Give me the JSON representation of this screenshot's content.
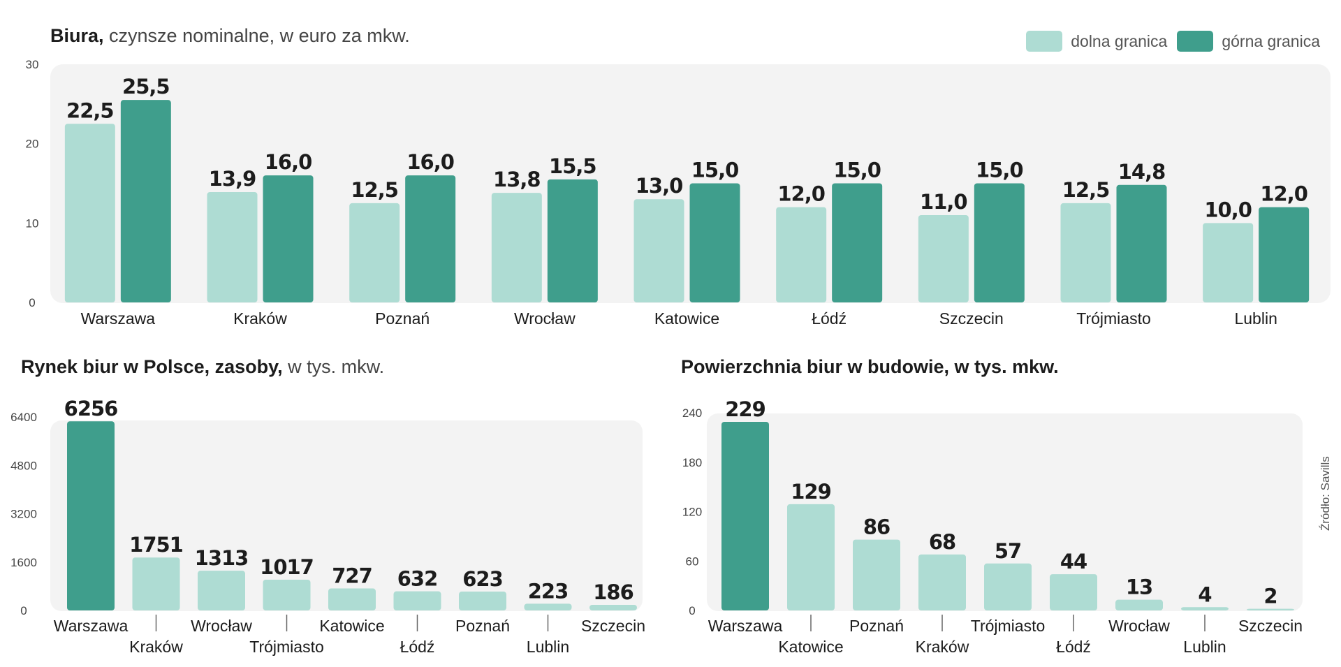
{
  "source_note": "Źródło: Savills",
  "legend": {
    "lower": {
      "label": "dolna granica",
      "color": "#aedcd3"
    },
    "upper": {
      "label": "górna granica",
      "color": "#3f9e8c"
    }
  },
  "chart_data": [
    {
      "type": "bar",
      "title_bold": "Biura,",
      "title_normal": " czynsze nominalne, w euro za mkw.",
      "categories": [
        "Warszawa",
        "Kraków",
        "Poznań",
        "Wrocław",
        "Katowice",
        "Łódź",
        "Szczecin",
        "Trójmiasto",
        "Lublin"
      ],
      "series": [
        {
          "name": "dolna granica",
          "values": [
            22.5,
            13.9,
            12.5,
            13.8,
            13.0,
            12.0,
            11.0,
            12.5,
            10.0
          ],
          "labels": [
            "22,5",
            "13,9",
            "12,5",
            "13,8",
            "13,0",
            "12,0",
            "11,0",
            "12,5",
            "10,0"
          ],
          "color": "#aedcd3"
        },
        {
          "name": "górna granica",
          "values": [
            25.5,
            16.0,
            16.0,
            15.5,
            15.0,
            15.0,
            15.0,
            14.8,
            12.0
          ],
          "labels": [
            "25,5",
            "16,0",
            "16,0",
            "15,5",
            "15,0",
            "15,0",
            "15,0",
            "14,8",
            "12,0"
          ],
          "color": "#3f9e8c"
        }
      ],
      "ylim": [
        0,
        30
      ],
      "yticks": [
        "0",
        "10",
        "20",
        "30"
      ],
      "ytick_values": [
        0,
        10,
        20,
        30
      ]
    },
    {
      "type": "bar",
      "title_bold": "Rynek biur w Polsce, zasoby,",
      "title_normal": " w tys. mkw.",
      "categories": [
        "Warszawa",
        "Kraków",
        "Wrocław",
        "Trójmiasto",
        "Katowice",
        "Łódź",
        "Poznań",
        "Lublin",
        "Szczecin"
      ],
      "values": [
        6256,
        1751,
        1313,
        1017,
        727,
        632,
        623,
        223,
        186
      ],
      "labels": [
        "6256",
        "1751",
        "1313",
        "1017",
        "727",
        "632",
        "623",
        "223",
        "186"
      ],
      "highlight_color": "#3f9e8c",
      "color": "#aedcd3",
      "ylim": [
        0,
        6400
      ],
      "yticks": [
        "0",
        "1600",
        "3200",
        "4800",
        "6400"
      ],
      "ytick_values": [
        0,
        1600,
        3200,
        4800,
        6400
      ]
    },
    {
      "type": "bar",
      "title_bold": "Powierzchnia biur w budowie, w tys. mkw.",
      "title_normal": "",
      "categories": [
        "Warszawa",
        "Katowice",
        "Poznań",
        "Kraków",
        "Trójmiasto",
        "Łódź",
        "Wrocław",
        "Lublin",
        "Szczecin"
      ],
      "values": [
        229,
        129,
        86,
        68,
        57,
        44,
        13,
        4,
        2
      ],
      "labels": [
        "229",
        "129",
        "86",
        "68",
        "57",
        "44",
        "13",
        "4",
        "2"
      ],
      "highlight_color": "#3f9e8c",
      "color": "#aedcd3",
      "ylim": [
        0,
        240
      ],
      "yticks": [
        "0",
        "60",
        "120",
        "180",
        "240"
      ],
      "ytick_values": [
        0,
        60,
        120,
        180,
        240
      ]
    }
  ]
}
